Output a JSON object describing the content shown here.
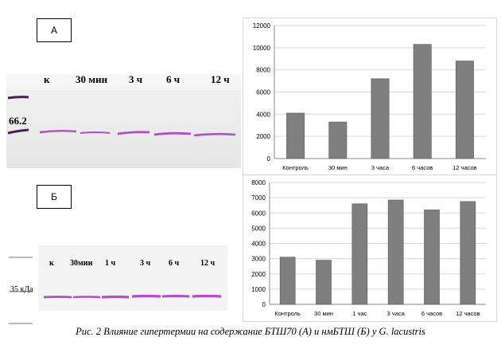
{
  "panel_a": {
    "letter": "А",
    "marker": "66.2",
    "lanes": [
      "к",
      "30 мин",
      "3 ч",
      "6 ч",
      "12 ч"
    ]
  },
  "panel_b": {
    "letter": "Б",
    "marker": "35 кДа",
    "lanes": [
      "к",
      "30мин",
      "1 ч",
      "3 ч",
      "6 ч",
      "12 ч"
    ]
  },
  "caption": "Рис. 2 Влияние гипертермии на содержание БТШ70 (А) и нмБТШ (Б) у G. lacustris",
  "colors": {
    "bar": "#7f7f7f",
    "band": "#b04fc8",
    "marker_band": "#4a1f55"
  },
  "chart_data": [
    {
      "type": "bar",
      "categories": [
        "Контроль",
        "30 мин",
        "3 часа",
        "6 часов",
        "12 часов"
      ],
      "values": [
        4100,
        3300,
        7200,
        10300,
        8800
      ],
      "ylim": [
        0,
        12000
      ],
      "yticks": [
        "0",
        "2000",
        "4000",
        "6000",
        "8000",
        "10000",
        "12000"
      ],
      "grid": true,
      "title": "",
      "xlabel": "",
      "ylabel": ""
    },
    {
      "type": "bar",
      "categories": [
        "Контроль",
        "30 мин",
        "1 час",
        "3 часа",
        "6 часов",
        "12 часов"
      ],
      "values": [
        3100,
        2900,
        6600,
        6850,
        6200,
        6750
      ],
      "ylim": [
        0,
        8000
      ],
      "yticks": [
        "0",
        "1000",
        "2000",
        "3000",
        "4000",
        "5000",
        "6000",
        "7000",
        "8000"
      ],
      "grid": true,
      "title": "",
      "xlabel": "",
      "ylabel": ""
    }
  ]
}
